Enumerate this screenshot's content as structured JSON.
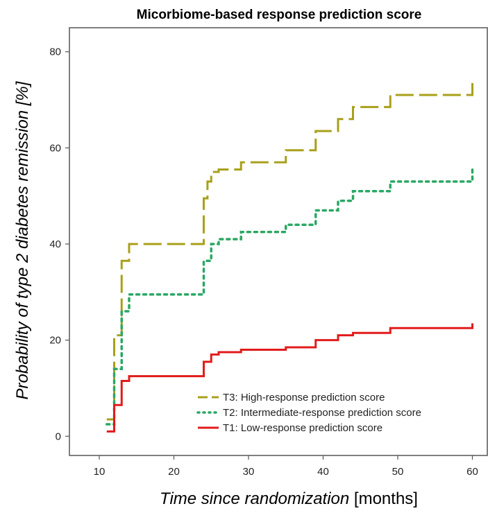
{
  "chart_data": {
    "type": "line",
    "step": true,
    "title": "Micorbiome-based response prediction score",
    "ylabel": "Probability of type 2 diabetes remission [%]",
    "xlabel_italic": "Time since randomization",
    "xlabel_unit": " [months]",
    "xlim": [
      6,
      62
    ],
    "ylim": [
      -4,
      85
    ],
    "xticks": [
      10,
      20,
      30,
      40,
      50,
      60
    ],
    "yticks": [
      0,
      20,
      40,
      60,
      80
    ],
    "legend_position": "bottom-right",
    "series": [
      {
        "name": "T3: High-response prediction score",
        "color": "#a8a019",
        "style": "dashed",
        "x": [
          11,
          12,
          12.5,
          13,
          14,
          24,
          24.5,
          25,
          26,
          29,
          35,
          39,
          42,
          44,
          49,
          60
        ],
        "y": [
          3.5,
          21,
          21,
          36.5,
          40,
          49.5,
          53,
          55,
          55.5,
          57,
          59.5,
          63.5,
          66,
          68.5,
          71,
          74.5
        ]
      },
      {
        "name": "T2: Intermediate-response prediction score",
        "color": "#2aa864",
        "style": "dotted",
        "x": [
          11,
          12,
          13,
          14,
          24,
          25,
          26,
          29,
          35,
          39,
          42,
          44,
          49,
          60
        ],
        "y": [
          2.5,
          14,
          26,
          29.5,
          36.5,
          40,
          41,
          42.5,
          44,
          47,
          49,
          51,
          53,
          55.5
        ]
      },
      {
        "name": "T1: Low-response prediction score",
        "color": "#e11b1b",
        "style": "solid",
        "x": [
          11,
          12,
          13,
          14,
          24,
          25,
          26,
          29,
          35,
          39,
          42,
          44,
          49,
          60
        ],
        "y": [
          1,
          6.5,
          11.5,
          12.5,
          15.5,
          17,
          17.5,
          18,
          18.5,
          20,
          21,
          21.5,
          22.5,
          23.5
        ]
      }
    ]
  }
}
